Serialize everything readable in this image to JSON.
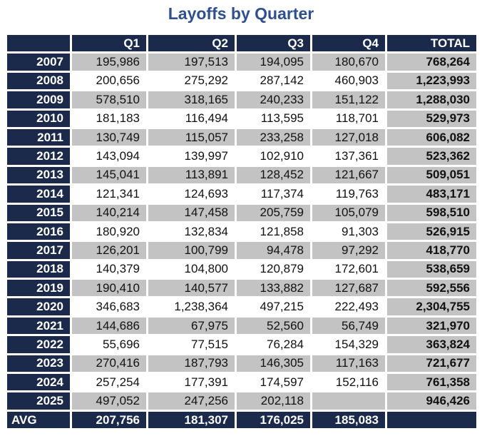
{
  "title": "Layoffs by Quarter",
  "headers": [
    "",
    "Q1",
    "Q2",
    "Q3",
    "Q4",
    "TOTAL"
  ],
  "rows": [
    [
      "2007",
      "195,986",
      "197,513",
      "194,095",
      "180,670",
      "768,264"
    ],
    [
      "2008",
      "200,656",
      "275,292",
      "287,142",
      "460,903",
      "1,223,993"
    ],
    [
      "2009",
      "578,510",
      "318,165",
      "240,233",
      "151,122",
      "1,288,030"
    ],
    [
      "2010",
      "181,183",
      "116,494",
      "113,595",
      "118,701",
      "529,973"
    ],
    [
      "2011",
      "130,749",
      "115,057",
      "233,258",
      "127,018",
      "606,082"
    ],
    [
      "2012",
      "143,094",
      "139,997",
      "102,910",
      "137,361",
      "523,362"
    ],
    [
      "2013",
      "145,041",
      "113,891",
      "128,452",
      "121,667",
      "509,051"
    ],
    [
      "2014",
      "121,341",
      "124,693",
      "117,374",
      "119,763",
      "483,171"
    ],
    [
      "2015",
      "140,214",
      "147,458",
      "205,759",
      "105,079",
      "598,510"
    ],
    [
      "2016",
      "180,920",
      "132,834",
      "121,858",
      "91,303",
      "526,915"
    ],
    [
      "2017",
      "126,201",
      "100,799",
      "94,478",
      "97,292",
      "418,770"
    ],
    [
      "2018",
      "140,379",
      "104,800",
      "120,879",
      "172,601",
      "538,659"
    ],
    [
      "2019",
      "190,410",
      "140,577",
      "133,882",
      "127,687",
      "592,556"
    ],
    [
      "2020",
      "346,683",
      "1,238,364",
      "497,215",
      "222,493",
      "2,304,755"
    ],
    [
      "2021",
      "144,686",
      "67,975",
      "52,560",
      "56,749",
      "321,970"
    ],
    [
      "2022",
      "55,696",
      "77,515",
      "76,284",
      "154,329",
      "363,824"
    ],
    [
      "2023",
      "270,416",
      "187,793",
      "146,305",
      "117,163",
      "721,677"
    ],
    [
      "2024",
      "257,254",
      "177,391",
      "174,597",
      "152,116",
      "761,358"
    ],
    [
      "2025",
      "497,052",
      "247,256",
      "202,118",
      "",
      "946,426"
    ]
  ],
  "avg": [
    "AVG",
    "207,756",
    "181,307",
    "176,025",
    "185,083",
    ""
  ],
  "colors": {
    "navy": "#1b2a4b",
    "gray": "#c3c3c3",
    "title": "#2f4f93"
  }
}
